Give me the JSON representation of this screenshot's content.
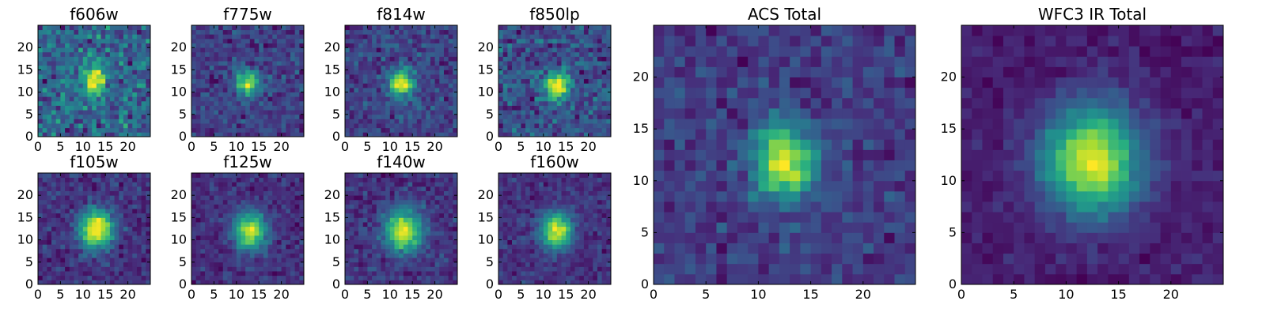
{
  "figure": {
    "colormap": "viridis",
    "background": "#ffffff"
  },
  "chart_data": [
    {
      "type": "heatmap",
      "title": "f606w",
      "grid": false,
      "xlim": [
        0,
        25
      ],
      "ylim": [
        0,
        25
      ],
      "xticks": [
        0,
        5,
        10,
        15,
        20
      ],
      "yticks": [
        0,
        5,
        10,
        15,
        20
      ],
      "xtick_labels": [
        "0",
        "5",
        "10",
        "15",
        "20"
      ],
      "ytick_labels": [
        "0",
        "5",
        "10",
        "15",
        "20"
      ],
      "image_size": [
        25,
        25
      ],
      "peak_center": [
        12.5,
        12.5
      ],
      "peak_sigma": [
        1.6,
        2.6
      ],
      "noise": 0.34,
      "seed": 11
    },
    {
      "type": "heatmap",
      "title": "f775w",
      "grid": false,
      "xlim": [
        0,
        25
      ],
      "ylim": [
        0,
        25
      ],
      "xticks": [
        0,
        5,
        10,
        15,
        20
      ],
      "yticks": [
        0,
        5,
        10,
        15,
        20
      ],
      "xtick_labels": [
        "0",
        "5",
        "10",
        "15",
        "20"
      ],
      "ytick_labels": [
        "0",
        "5",
        "10",
        "15",
        "20"
      ],
      "image_size": [
        25,
        25
      ],
      "peak_center": [
        12.5,
        12
      ],
      "peak_sigma": [
        1.8,
        2.0
      ],
      "noise": 0.22,
      "seed": 12
    },
    {
      "type": "heatmap",
      "title": "f814w",
      "grid": false,
      "xlim": [
        0,
        25
      ],
      "ylim": [
        0,
        25
      ],
      "xticks": [
        0,
        5,
        10,
        15,
        20
      ],
      "yticks": [
        0,
        5,
        10,
        15,
        20
      ],
      "xtick_labels": [
        "0",
        "5",
        "10",
        "15",
        "20"
      ],
      "ytick_labels": [
        "0",
        "5",
        "10",
        "15",
        "20"
      ],
      "image_size": [
        25,
        25
      ],
      "peak_center": [
        12.5,
        12
      ],
      "peak_sigma": [
        1.8,
        2.1
      ],
      "noise": 0.2,
      "seed": 13
    },
    {
      "type": "heatmap",
      "title": "f850lp",
      "grid": false,
      "xlim": [
        0,
        25
      ],
      "ylim": [
        0,
        25
      ],
      "xticks": [
        0,
        5,
        10,
        15,
        20
      ],
      "yticks": [
        0,
        5,
        10,
        15,
        20
      ],
      "xtick_labels": [
        "0",
        "5",
        "10",
        "15",
        "20"
      ],
      "ytick_labels": [
        "0",
        "5",
        "10",
        "15",
        "20"
      ],
      "image_size": [
        25,
        25
      ],
      "peak_center": [
        13,
        11.5
      ],
      "peak_sigma": [
        1.8,
        2.0
      ],
      "noise": 0.24,
      "seed": 14
    },
    {
      "type": "heatmap",
      "title": "f105w",
      "grid": false,
      "xlim": [
        0,
        25
      ],
      "ylim": [
        0,
        25
      ],
      "xticks": [
        0,
        5,
        10,
        15,
        20
      ],
      "yticks": [
        0,
        5,
        10,
        15,
        20
      ],
      "xtick_labels": [
        "0",
        "5",
        "10",
        "15",
        "20"
      ],
      "ytick_labels": [
        "0",
        "5",
        "10",
        "15",
        "20"
      ],
      "image_size": [
        25,
        25
      ],
      "peak_center": [
        13,
        12.5
      ],
      "peak_sigma": [
        2.6,
        3.0
      ],
      "noise": 0.14,
      "seed": 15
    },
    {
      "type": "heatmap",
      "title": "f125w",
      "grid": false,
      "xlim": [
        0,
        25
      ],
      "ylim": [
        0,
        25
      ],
      "xticks": [
        0,
        5,
        10,
        15,
        20
      ],
      "yticks": [
        0,
        5,
        10,
        15,
        20
      ],
      "xtick_labels": [
        "0",
        "5",
        "10",
        "15",
        "20"
      ],
      "ytick_labels": [
        "0",
        "5",
        "10",
        "15",
        "20"
      ],
      "image_size": [
        25,
        25
      ],
      "peak_center": [
        13,
        12
      ],
      "peak_sigma": [
        2.6,
        3.0
      ],
      "noise": 0.14,
      "seed": 16
    },
    {
      "type": "heatmap",
      "title": "f140w",
      "grid": false,
      "xlim": [
        0,
        25
      ],
      "ylim": [
        0,
        25
      ],
      "xticks": [
        0,
        5,
        10,
        15,
        20
      ],
      "yticks": [
        0,
        5,
        10,
        15,
        20
      ],
      "xtick_labels": [
        "0",
        "5",
        "10",
        "15",
        "20"
      ],
      "ytick_labels": [
        "0",
        "5",
        "10",
        "15",
        "20"
      ],
      "image_size": [
        25,
        25
      ],
      "peak_center": [
        13,
        12
      ],
      "peak_sigma": [
        2.8,
        3.2
      ],
      "noise": 0.15,
      "seed": 17
    },
    {
      "type": "heatmap",
      "title": "f160w",
      "grid": false,
      "xlim": [
        0,
        25
      ],
      "ylim": [
        0,
        25
      ],
      "xticks": [
        0,
        5,
        10,
        15,
        20
      ],
      "yticks": [
        0,
        5,
        10,
        15,
        20
      ],
      "xtick_labels": [
        "0",
        "5",
        "10",
        "15",
        "20"
      ],
      "ytick_labels": [
        "0",
        "5",
        "10",
        "15",
        "20"
      ],
      "image_size": [
        25,
        25
      ],
      "peak_center": [
        13,
        12
      ],
      "peak_sigma": [
        2.4,
        2.8
      ],
      "noise": 0.13,
      "seed": 18
    },
    {
      "type": "heatmap",
      "title": "ACS Total",
      "grid": false,
      "xlim": [
        0,
        25
      ],
      "ylim": [
        0,
        25
      ],
      "xticks": [
        0,
        5,
        10,
        15,
        20
      ],
      "yticks": [
        0,
        5,
        10,
        15,
        20
      ],
      "xtick_labels": [
        "0",
        "5",
        "10",
        "15",
        "20"
      ],
      "ytick_labels": [
        "0",
        "5",
        "10",
        "15",
        "20"
      ],
      "image_size": [
        25,
        25
      ],
      "peak_center": [
        12.5,
        12
      ],
      "peak_sigma": [
        2.0,
        2.4
      ],
      "noise": 0.15,
      "seed": 19
    },
    {
      "type": "heatmap",
      "title": "WFC3 IR Total",
      "grid": false,
      "xlim": [
        0,
        25
      ],
      "ylim": [
        0,
        25
      ],
      "xticks": [
        0,
        5,
        10,
        15,
        20
      ],
      "yticks": [
        0,
        5,
        10,
        15,
        20
      ],
      "xtick_labels": [
        "0",
        "5",
        "10",
        "15",
        "20"
      ],
      "ytick_labels": [
        "0",
        "5",
        "10",
        "15",
        "20"
      ],
      "image_size": [
        25,
        25
      ],
      "peak_center": [
        12.5,
        12
      ],
      "peak_sigma": [
        3.2,
        3.6
      ],
      "noise": 0.08,
      "seed": 20
    }
  ]
}
